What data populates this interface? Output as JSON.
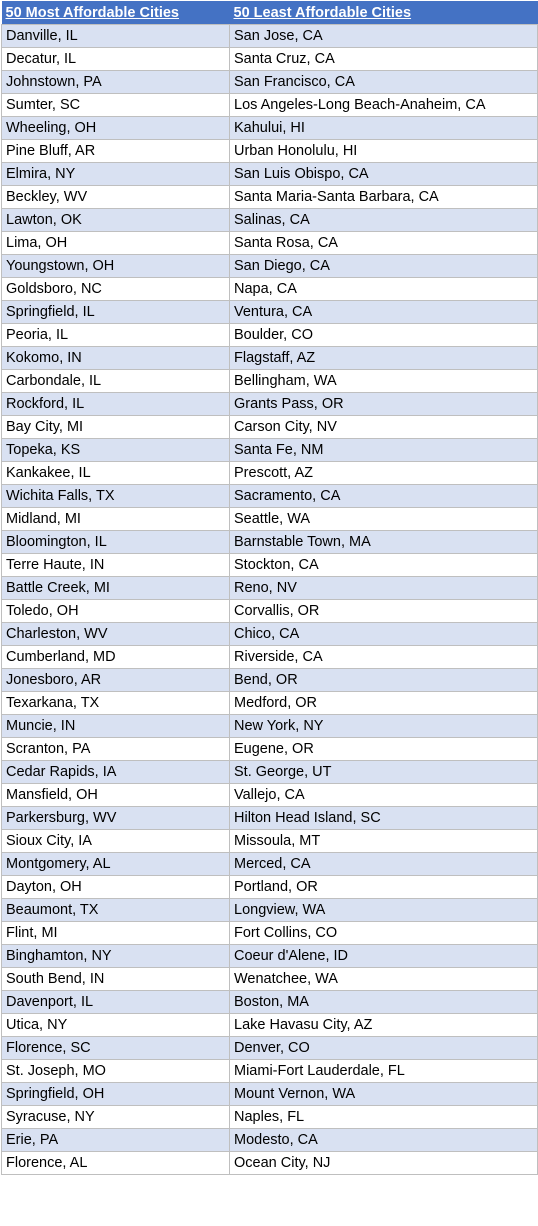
{
  "table": {
    "headers": [
      "50 Most Affordable Cities",
      "50 Least Affordable Cities"
    ],
    "rows": [
      [
        "Danville, IL",
        "San Jose, CA"
      ],
      [
        "Decatur, IL",
        "Santa Cruz, CA"
      ],
      [
        "Johnstown, PA",
        "San Francisco, CA"
      ],
      [
        "Sumter, SC",
        "Los Angeles-Long Beach-Anaheim, CA"
      ],
      [
        "Wheeling, OH",
        "Kahului, HI"
      ],
      [
        "Pine Bluff, AR",
        "Urban Honolulu, HI"
      ],
      [
        "Elmira, NY",
        "San Luis Obispo, CA"
      ],
      [
        "Beckley, WV",
        "Santa Maria-Santa Barbara, CA"
      ],
      [
        "Lawton, OK",
        "Salinas, CA"
      ],
      [
        "Lima, OH",
        "Santa Rosa, CA"
      ],
      [
        "Youngstown, OH",
        "San Diego, CA"
      ],
      [
        "Goldsboro, NC",
        "Napa, CA"
      ],
      [
        "Springfield, IL",
        "Ventura, CA"
      ],
      [
        "Peoria, IL",
        "Boulder, CO"
      ],
      [
        "Kokomo, IN",
        "Flagstaff, AZ"
      ],
      [
        "Carbondale, IL",
        "Bellingham, WA"
      ],
      [
        "Rockford, IL",
        "Grants Pass, OR"
      ],
      [
        "Bay City, MI",
        "Carson City, NV"
      ],
      [
        "Topeka, KS",
        "Santa Fe, NM"
      ],
      [
        "Kankakee, IL",
        "Prescott, AZ"
      ],
      [
        "Wichita Falls, TX",
        "Sacramento, CA"
      ],
      [
        "Midland, MI",
        "Seattle, WA"
      ],
      [
        "Bloomington, IL",
        "Barnstable Town, MA"
      ],
      [
        "Terre Haute, IN",
        "Stockton, CA"
      ],
      [
        "Battle Creek, MI",
        "Reno, NV"
      ],
      [
        "Toledo, OH",
        "Corvallis, OR"
      ],
      [
        "Charleston, WV",
        "Chico, CA"
      ],
      [
        "Cumberland, MD",
        "Riverside, CA"
      ],
      [
        "Jonesboro, AR",
        "Bend, OR"
      ],
      [
        "Texarkana, TX",
        "Medford, OR"
      ],
      [
        "Muncie, IN",
        "New York, NY"
      ],
      [
        "Scranton, PA",
        "Eugene, OR"
      ],
      [
        "Cedar Rapids, IA",
        "St. George, UT"
      ],
      [
        "Mansfield, OH",
        "Vallejo, CA"
      ],
      [
        "Parkersburg, WV",
        "Hilton Head Island, SC"
      ],
      [
        "Sioux City, IA",
        "Missoula, MT"
      ],
      [
        "Montgomery, AL",
        "Merced, CA"
      ],
      [
        "Dayton, OH",
        "Portland, OR"
      ],
      [
        "Beaumont, TX",
        "Longview, WA"
      ],
      [
        "Flint, MI",
        "Fort Collins, CO"
      ],
      [
        "Binghamton, NY",
        "Coeur d'Alene, ID"
      ],
      [
        "South Bend, IN",
        "Wenatchee, WA"
      ],
      [
        "Davenport, IL",
        "Boston, MA"
      ],
      [
        "Utica, NY",
        "Lake Havasu City, AZ"
      ],
      [
        "Florence, SC",
        "Denver, CO"
      ],
      [
        "St. Joseph, MO",
        "Miami-Fort Lauderdale, FL"
      ],
      [
        "Springfield, OH",
        "Mount Vernon, WA"
      ],
      [
        "Syracuse, NY",
        "Naples, FL"
      ],
      [
        "Erie, PA",
        "Modesto, CA"
      ],
      [
        "Florence, AL",
        "Ocean City, NJ"
      ]
    ]
  },
  "colors": {
    "header_bg": "#4472c4",
    "header_text": "#ffffff",
    "band_row": "#d9e1f2",
    "plain_row": "#ffffff",
    "grid_line": "#bfbfbf"
  }
}
